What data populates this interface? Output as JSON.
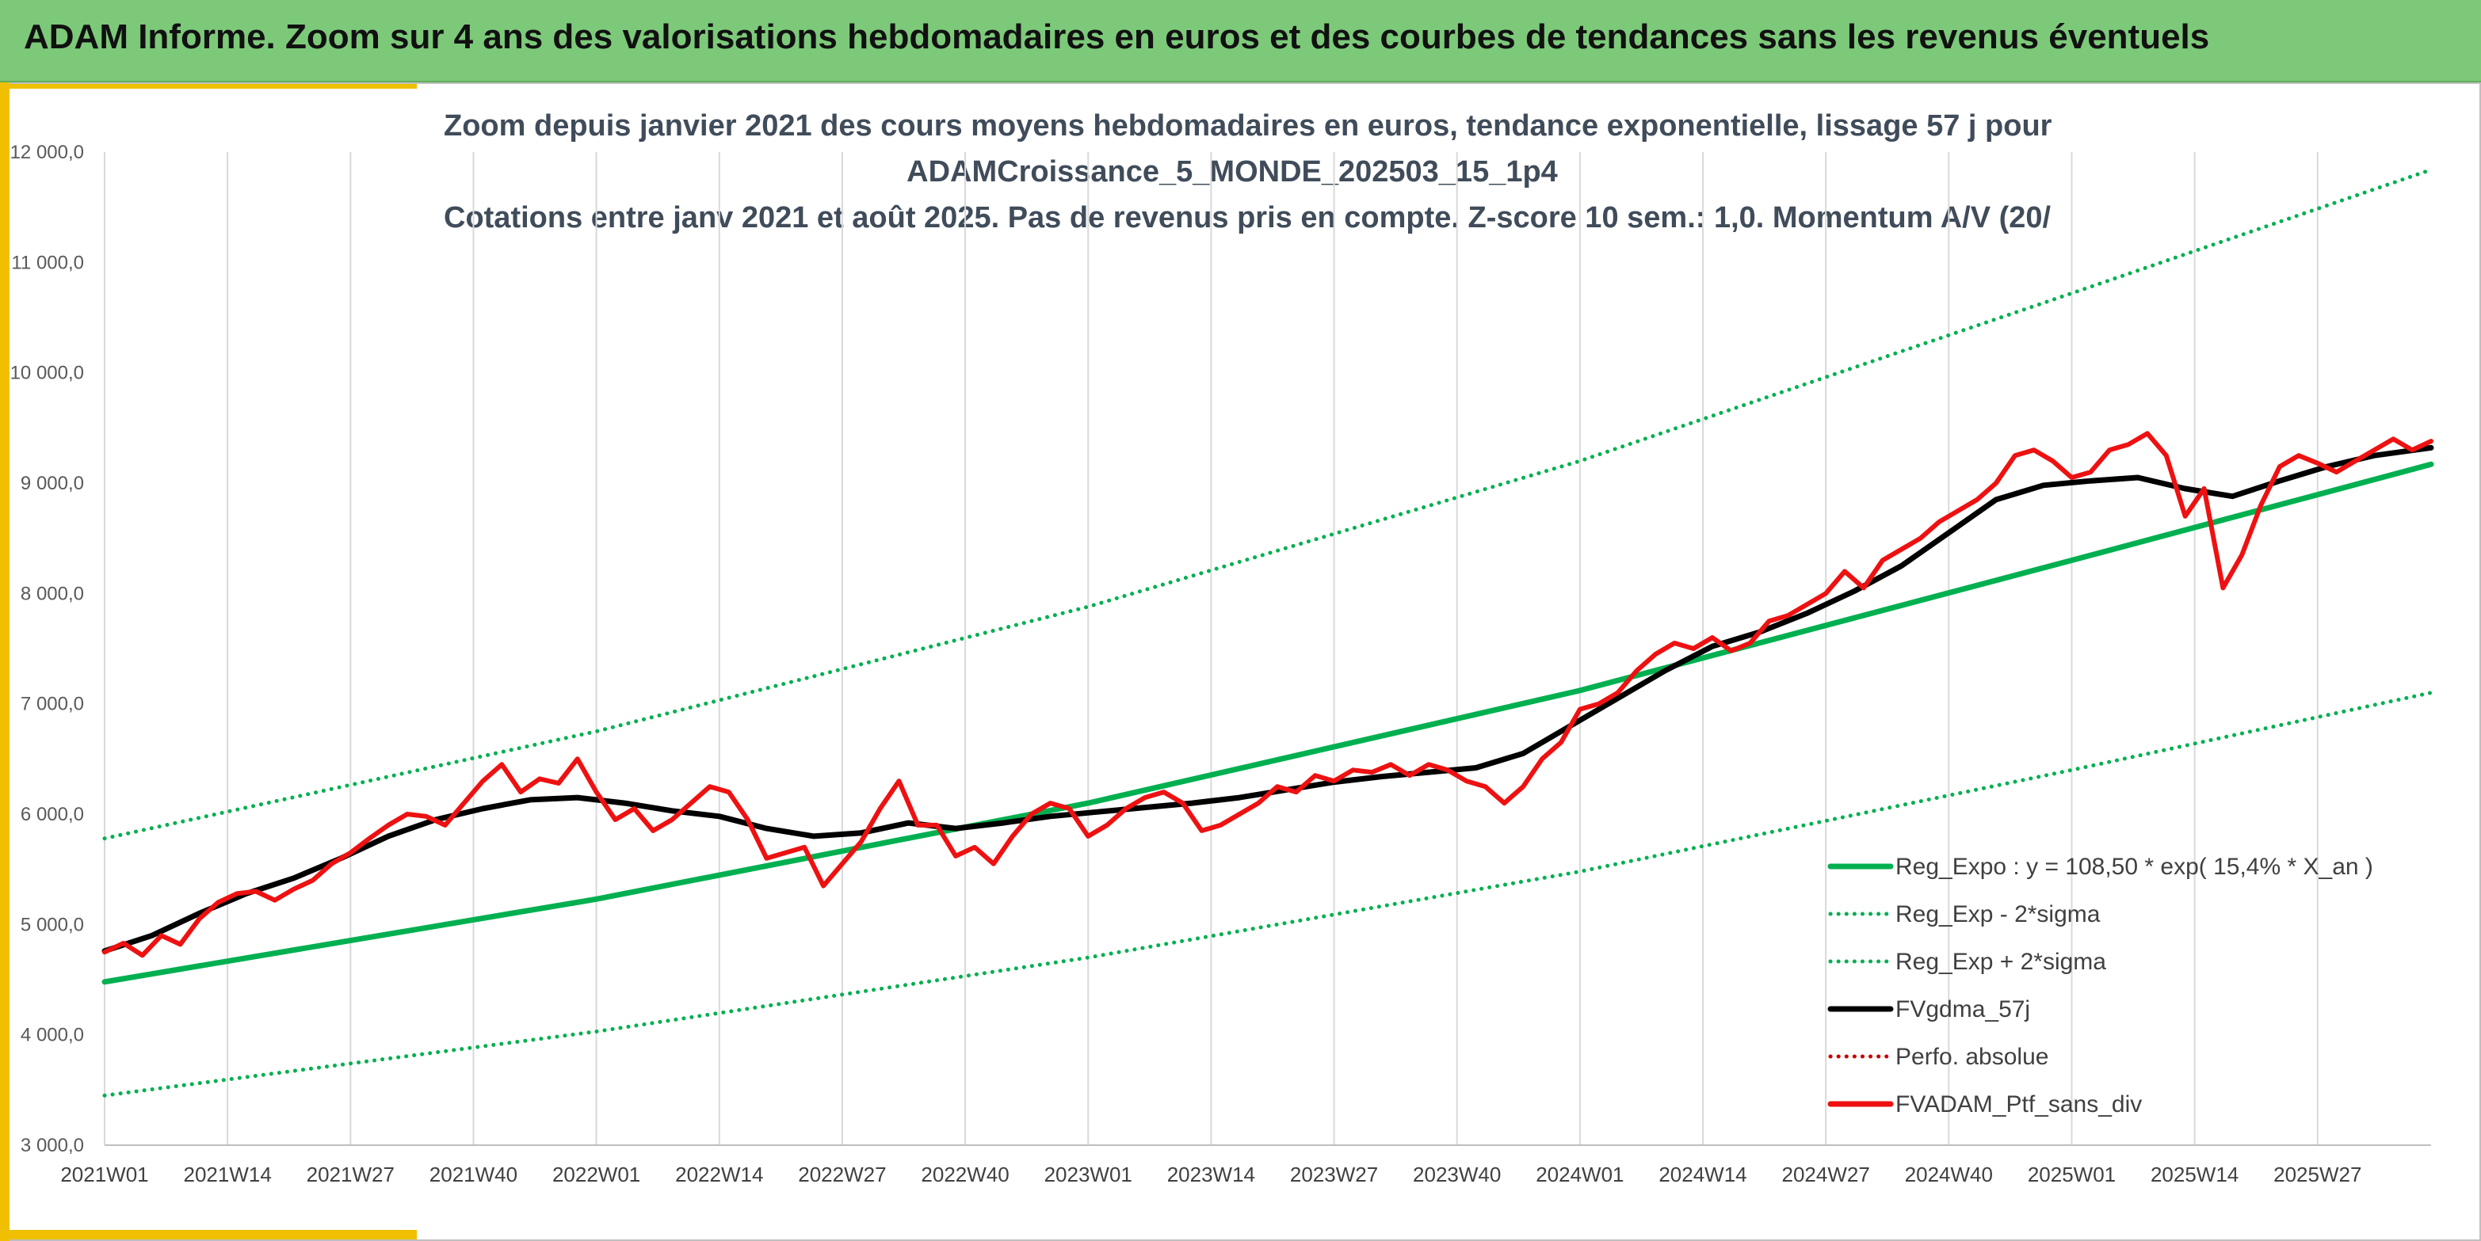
{
  "banner": {
    "title": "ADAM Informe. Zoom sur 4 ans des valorisations hebdomadaires en euros et des courbes de tendances sans les revenus éventuels"
  },
  "colors": {
    "banner_bg": "#7dc97a",
    "accent": "#f0c000",
    "trend": "#00b050",
    "smooth": "#000000",
    "portfolio": "#ee1111",
    "perf": "#cc0000"
  },
  "chart_data": {
    "type": "line",
    "title_lines": [
      "Zoom depuis janvier 2021 des cours moyens hebdomadaires en euros, tendance exponentielle, lissage 57 j pour",
      "ADAMCroissance_5_MONDE_202503_15_1p4",
      "Cotations entre janv 2021 et août 2025. Pas de revenus pris en compte. Z-score 10 sem.: 1,0. Momentum A/V (20/"
    ],
    "x_unit": "week index from 2021W01",
    "x_tick_labels": [
      "2021W01",
      "2021W14",
      "2021W27",
      "2021W40",
      "2022W01",
      "2022W14",
      "2022W27",
      "2022W40",
      "2023W01",
      "2023W14",
      "2023W27",
      "2023W40",
      "2024W01",
      "2024W14",
      "2024W27",
      "2024W40",
      "2025W01",
      "2025W14",
      "2025W27"
    ],
    "x_tick_weeks": [
      0,
      13,
      26,
      39,
      52,
      65,
      78,
      91,
      104,
      117,
      130,
      143,
      156,
      169,
      182,
      195,
      208,
      221,
      234
    ],
    "x_range": [
      0,
      246
    ],
    "ylim": [
      3000,
      12000
    ],
    "y_ticks": [
      3000,
      4000,
      5000,
      6000,
      7000,
      8000,
      9000,
      10000,
      11000,
      12000
    ],
    "y_tick_labels": [
      "3 000,0",
      "4 000,0",
      "5 000,0",
      "6 000,0",
      "7 000,0",
      "8 000,0",
      "9 000,0",
      "10 000,0",
      "11 000,0",
      "12 000,0"
    ],
    "grid": "vertical lines at x ticks",
    "legend_position": "bottom-right",
    "legend": [
      {
        "label": "Reg_Expo : y = 108,50 * exp( 15,4% *  X_an )",
        "color": "#00b050",
        "style": "solid"
      },
      {
        "label": "Reg_Exp - 2*sigma",
        "color": "#00b050",
        "style": "dotted"
      },
      {
        "label": "Reg_Exp + 2*sigma",
        "color": "#00b050",
        "style": "dotted"
      },
      {
        "label": "FVgdma_57j",
        "color": "#000000",
        "style": "solid"
      },
      {
        "label": "Perfo. absolue",
        "color": "#cc0000",
        "style": "dotted"
      },
      {
        "label": "FVADAM_Ptf_sans_div",
        "color": "#ee1111",
        "style": "solid"
      }
    ],
    "series": [
      {
        "name": "Reg_Expo : y = 108,50 * exp( 15,4% *  X_an )",
        "style": "solid",
        "color": "#00b050",
        "x": [
          0,
          52,
          104,
          156,
          208,
          246
        ],
        "values": [
          4480,
          5230,
          6100,
          7120,
          8300,
          9170
        ]
      },
      {
        "name": "Reg_Exp - 2*sigma",
        "style": "dotted",
        "color": "#00b050",
        "x": [
          0,
          52,
          104,
          156,
          208,
          246
        ],
        "values": [
          3450,
          4030,
          4700,
          5480,
          6400,
          7100
        ]
      },
      {
        "name": "Reg_Exp + 2*sigma",
        "style": "dotted",
        "color": "#00b050",
        "x": [
          0,
          52,
          104,
          156,
          208,
          246
        ],
        "values": [
          5780,
          6750,
          7880,
          9200,
          10720,
          11840
        ]
      },
      {
        "name": "FVgdma_57j",
        "style": "solid",
        "color": "#000000",
        "x": [
          0,
          5,
          10,
          15,
          20,
          25,
          30,
          35,
          40,
          45,
          50,
          55,
          60,
          65,
          70,
          75,
          80,
          85,
          90,
          95,
          100,
          105,
          110,
          115,
          120,
          125,
          130,
          135,
          140,
          145,
          150,
          155,
          160,
          165,
          170,
          175,
          180,
          185,
          190,
          195,
          200,
          205,
          210,
          215,
          220,
          225,
          230,
          235,
          240,
          246
        ],
        "values": [
          4760,
          4900,
          5100,
          5280,
          5420,
          5600,
          5800,
          5950,
          6050,
          6130,
          6150,
          6100,
          6030,
          5980,
          5870,
          5800,
          5830,
          5920,
          5870,
          5920,
          5980,
          6020,
          6060,
          6100,
          6150,
          6220,
          6290,
          6340,
          6380,
          6420,
          6550,
          6800,
          7050,
          7300,
          7520,
          7650,
          7820,
          8020,
          8250,
          8550,
          8850,
          8980,
          9020,
          9050,
          8950,
          8880,
          9020,
          9150,
          9250,
          9320
        ]
      },
      {
        "name": "FVADAM_Ptf_sans_div",
        "style": "solid",
        "color": "#ee1111",
        "x": [
          0,
          2,
          4,
          6,
          8,
          10,
          12,
          14,
          16,
          18,
          20,
          22,
          24,
          26,
          28,
          30,
          32,
          34,
          36,
          38,
          40,
          42,
          44,
          46,
          48,
          50,
          52,
          54,
          56,
          58,
          60,
          62,
          64,
          66,
          68,
          70,
          72,
          74,
          76,
          78,
          80,
          82,
          84,
          86,
          88,
          90,
          92,
          94,
          96,
          98,
          100,
          102,
          104,
          106,
          108,
          110,
          112,
          114,
          116,
          118,
          120,
          122,
          124,
          126,
          128,
          130,
          132,
          134,
          136,
          138,
          140,
          142,
          144,
          146,
          148,
          150,
          152,
          154,
          156,
          158,
          160,
          162,
          164,
          166,
          168,
          170,
          172,
          174,
          176,
          178,
          180,
          182,
          184,
          186,
          188,
          190,
          192,
          194,
          196,
          198,
          200,
          202,
          204,
          206,
          208,
          210,
          212,
          214,
          216,
          218,
          220,
          222,
          224,
          226,
          228,
          230,
          232,
          234,
          236,
          238,
          240,
          242,
          244,
          246
        ],
        "values": [
          4750,
          4830,
          4720,
          4900,
          4820,
          5050,
          5200,
          5280,
          5300,
          5220,
          5320,
          5400,
          5550,
          5650,
          5780,
          5900,
          6000,
          5980,
          5900,
          6100,
          6300,
          6450,
          6200,
          6320,
          6280,
          6500,
          6200,
          5950,
          6050,
          5850,
          5950,
          6100,
          6250,
          6200,
          5950,
          5600,
          5650,
          5700,
          5350,
          5550,
          5750,
          6050,
          6300,
          5900,
          5900,
          5620,
          5700,
          5550,
          5800,
          6000,
          6100,
          6050,
          5800,
          5900,
          6050,
          6150,
          6200,
          6100,
          5850,
          5900,
          6000,
          6100,
          6250,
          6200,
          6350,
          6300,
          6400,
          6380,
          6450,
          6350,
          6450,
          6400,
          6300,
          6250,
          6100,
          6250,
          6500,
          6650,
          6950,
          7000,
          7100,
          7300,
          7450,
          7550,
          7500,
          7600,
          7480,
          7550,
          7750,
          7800,
          7900,
          8000,
          8200,
          8050,
          8300,
          8400,
          8500,
          8650,
          8750,
          8850,
          9000,
          9250,
          9300,
          9200,
          9050,
          9100,
          9300,
          9350,
          9450,
          9250,
          8700,
          8950,
          8050,
          8350,
          8800,
          9150,
          9250,
          9180,
          9100,
          9200,
          9300,
          9400,
          9300,
          9380
        ]
      }
    ]
  }
}
